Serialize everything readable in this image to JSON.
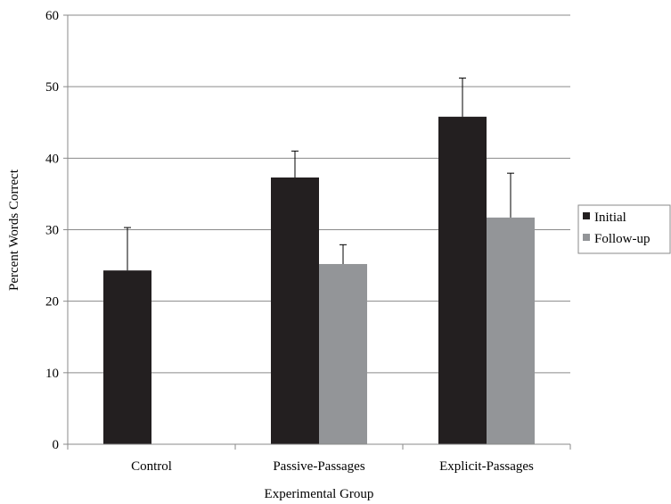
{
  "chart_data": {
    "type": "bar",
    "title": "",
    "xlabel": "Experimental Group",
    "ylabel": "Percent Words Correct",
    "categories": [
      "Control",
      "Passive-Passages",
      "Explicit-Passages"
    ],
    "ylim": [
      0,
      60
    ],
    "yticks": [
      0,
      10,
      20,
      30,
      40,
      50,
      60
    ],
    "grid": true,
    "legend_position": "right",
    "series": [
      {
        "name": "Initial",
        "color": "#231f20",
        "values": [
          24.3,
          37.3,
          45.8
        ],
        "error_upper": [
          6.0,
          3.7,
          5.4
        ]
      },
      {
        "name": "Follow-up",
        "color": "#939598",
        "values": [
          null,
          25.2,
          31.7
        ],
        "error_upper": [
          null,
          2.7,
          6.2
        ]
      }
    ]
  }
}
